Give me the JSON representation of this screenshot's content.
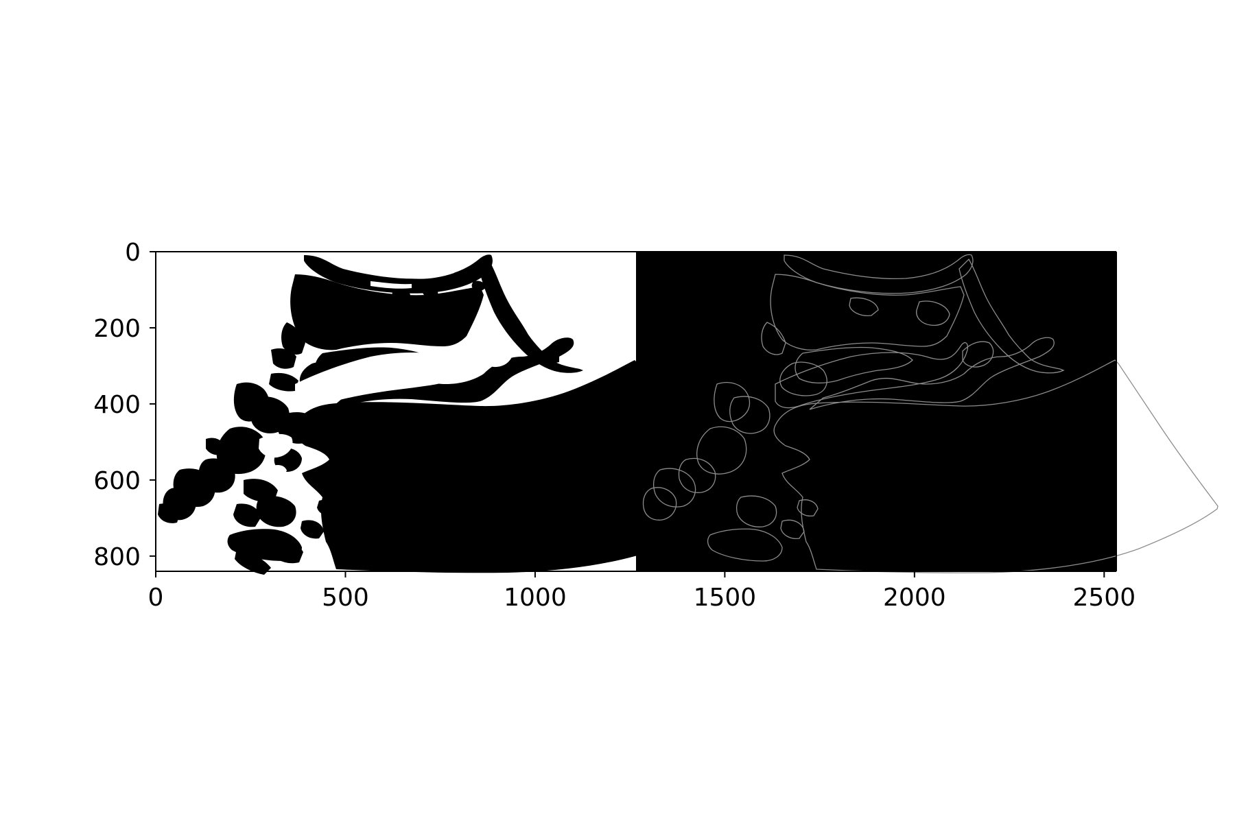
{
  "figure": {
    "description_type": "matplotlib image plot",
    "colors": {
      "background": "#ffffff",
      "mask_fill": "#000000",
      "mask_background": "#ffffff",
      "edge_panel_background": "#000000",
      "edge_line": "#8c8c8c",
      "axis": "#000000"
    },
    "panels": [
      "binary-mask",
      "edge-outline"
    ]
  },
  "chart_data": {
    "type": "heatmap",
    "title": "",
    "xlabel": "",
    "ylabel": "",
    "xlim": [
      0,
      2532
    ],
    "ylim": [
      840,
      0
    ],
    "grid": false,
    "x_ticks": [
      0,
      500,
      1000,
      1500,
      2000,
      2500
    ],
    "y_ticks": [
      0,
      200,
      400,
      600,
      800
    ],
    "x_tick_labels": [
      "0",
      "500",
      "1000",
      "1500",
      "2000",
      "2500"
    ],
    "y_tick_labels": [
      "0",
      "200",
      "400",
      "600",
      "800"
    ]
  }
}
